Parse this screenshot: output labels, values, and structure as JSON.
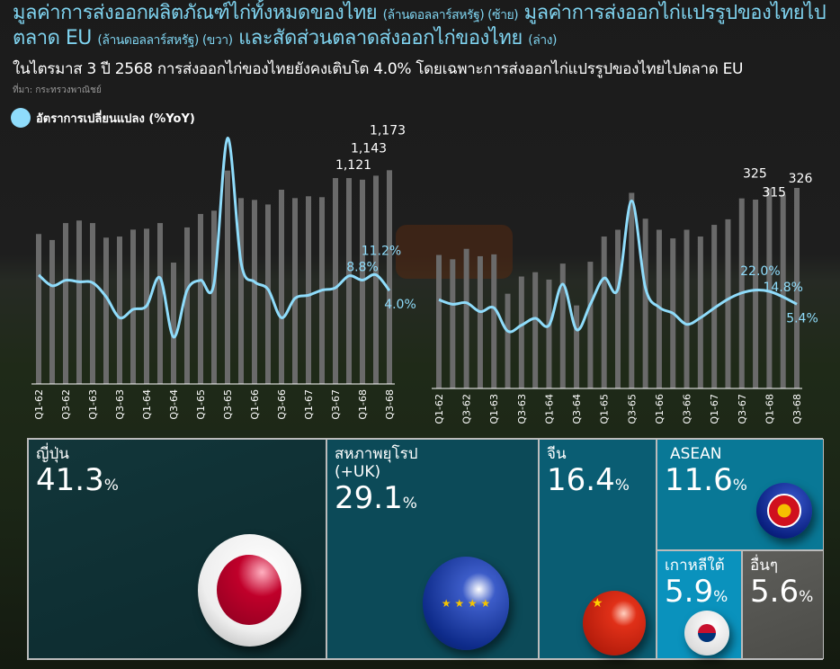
{
  "header": {
    "title_part1": "มูลค่าการส่งออกผลิตภัณฑ์ไก่ทั้งหมดของไทย",
    "title_unit1": "(ล้านดอลลาร์สหรัฐ) (ซ้าย)",
    "title_part2": "มูลค่าการส่งออกไก่แปรรูปของไทยไปตลาด EU",
    "title_unit2": "(ล้านดอลลาร์สหรัฐ) (ขวา)",
    "title_part3": "และสัดส่วนตลาดส่งออกไก่ของไทย",
    "title_unit3": "(ล่าง)",
    "subtitle": "ในไตรมาส 3 ปี 2568 การส่งออกไก่ของไทยยังคงเติบโต 4.0% โดยเฉพาะการส่งออกไก่แปรรูปของไทยไปตลาด EU",
    "source": "ที่มา: กระทรวงพาณิชย์"
  },
  "legend": {
    "line_label": "อัตราการเปลี่ยนแปลง (%YoY)",
    "line_color": "#8fdcfb",
    "bar_color": "#6a6a6a"
  },
  "chart_data": [
    {
      "type": "bar+line",
      "name": "left",
      "categories": [
        "Q1-62",
        "Q2-62",
        "Q3-62",
        "Q4-62",
        "Q1-63",
        "Q2-63",
        "Q3-63",
        "Q4-63",
        "Q1-64",
        "Q2-64",
        "Q3-64",
        "Q4-64",
        "Q1-65",
        "Q2-65",
        "Q3-65",
        "Q4-65",
        "Q1-66",
        "Q2-66",
        "Q3-66",
        "Q4-66",
        "Q1-67",
        "Q2-67",
        "Q3-67",
        "Q4-67",
        "Q1-68",
        "Q2-68",
        "Q3-68"
      ],
      "tick_labels": [
        "Q1-62",
        "Q3-62",
        "Q1-63",
        "Q3-63",
        "Q1-64",
        "Q3-64",
        "Q1-65",
        "Q3-65",
        "Q1-66",
        "Q3-66",
        "Q1-67",
        "Q3-67",
        "Q1-68",
        "Q3-68"
      ],
      "bar_values": [
        823,
        790,
        883,
        897,
        883,
        803,
        809,
        847,
        852,
        883,
        666,
        859,
        933,
        951,
        1171,
        1020,
        1010,
        985,
        1066,
        1020,
        1030,
        1025,
        1130,
        1130,
        1121,
        1143,
        1173
      ],
      "bar_labels": [
        "1,121",
        "1,143",
        "1,173"
      ],
      "yoy_values": [
        11.1,
        6.2,
        8.7,
        8.0,
        7.6,
        1.2,
        -8.3,
        -4.5,
        -2.9,
        9.8,
        -17.1,
        4.2,
        8.7,
        7.3,
        73.2,
        16.8,
        8.0,
        4.6,
        -8.3,
        0.5,
        1.9,
        4.2,
        5.3,
        10.7,
        8.8,
        11.2,
        4.0
      ],
      "yoy_labels": [
        "8.8%",
        "11.2%",
        "4.0%"
      ]
    },
    {
      "type": "bar+line",
      "name": "right",
      "categories": [
        "Q1-62",
        "Q2-62",
        "Q3-62",
        "Q4-62",
        "Q1-63",
        "Q2-63",
        "Q3-63",
        "Q4-63",
        "Q1-64",
        "Q2-64",
        "Q3-64",
        "Q4-64",
        "Q1-65",
        "Q2-65",
        "Q3-65",
        "Q4-65",
        "Q1-66",
        "Q2-66",
        "Q3-66",
        "Q4-66",
        "Q1-67",
        "Q2-67",
        "Q3-67",
        "Q4-67",
        "Q1-68",
        "Q2-68",
        "Q3-68"
      ],
      "tick_labels": [
        "Q1-62",
        "Q3-62",
        "Q1-63",
        "Q3-63",
        "Q1-64",
        "Q3-64",
        "Q1-65",
        "Q3-65",
        "Q1-66",
        "Q3-66",
        "Q1-67",
        "Q3-67",
        "Q1-68",
        "Q3-68"
      ],
      "bar_values": [
        217,
        210,
        227,
        215,
        218,
        154,
        182,
        189,
        177,
        203,
        135,
        206,
        247,
        258,
        318,
        276,
        258,
        244,
        258,
        247,
        266,
        275,
        309,
        307,
        325,
        315,
        326
      ],
      "bar_labels": [
        "325",
        "315",
        "326"
      ],
      "yoy_values": [
        11.2,
        5.4,
        7.3,
        -4.2,
        0.8,
        -29.3,
        -21.6,
        -12.7,
        -21.6,
        31.3,
        -27.4,
        5.4,
        39.0,
        24.7,
        138.6,
        26.6,
        1.5,
        -6.2,
        -20.5,
        -12.0,
        0.4,
        12.0,
        20.0,
        23.6,
        22.0,
        14.8,
        5.4
      ],
      "yoy_labels": [
        "22.0%",
        "14.8%",
        "5.4%"
      ]
    },
    {
      "type": "treemap",
      "name": "market-share",
      "items": [
        {
          "label": "ญี่ปุ่น",
          "value": "41.3",
          "unit": "%",
          "color": "#0f2f33"
        },
        {
          "label": "สหภาพยุโรป",
          "label2": "(+UK)",
          "value": "29.1",
          "unit": "%",
          "color": "#0c4a58"
        },
        {
          "label": "จีน",
          "value": "16.4",
          "unit": "%",
          "color": "#0a5d73"
        },
        {
          "label": "ASEAN",
          "value": "11.6",
          "unit": "%",
          "color": "#097896"
        },
        {
          "label": "เกาหลีใต้",
          "value": "5.9",
          "unit": "%",
          "color": "#0a92bd"
        },
        {
          "label": "อื่นๆ",
          "value": "5.6",
          "unit": "%",
          "color": "#5a5a55"
        }
      ]
    }
  ]
}
